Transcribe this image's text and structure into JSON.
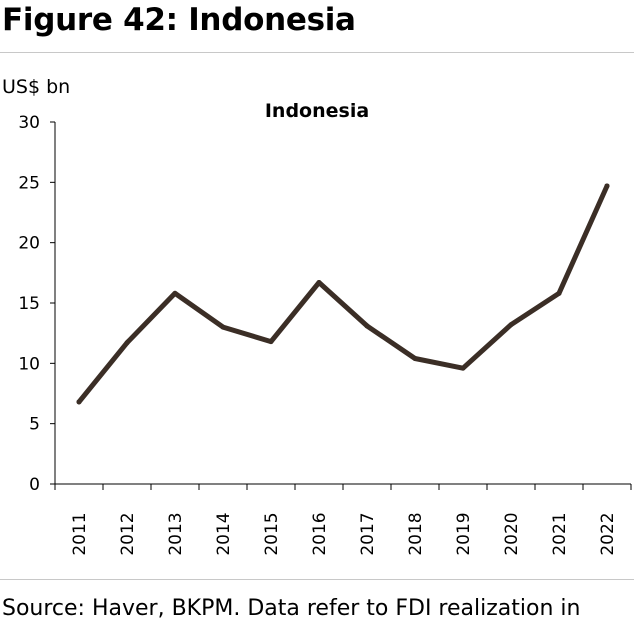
{
  "figure_title": "Figure 42: Indonesia",
  "unit_label": "US$ bn",
  "source_note": "Source: Haver, BKPM. Data refer to FDI realization in",
  "line_color": "#3b2e26",
  "chart_data": {
    "type": "line",
    "title": "Indonesia",
    "ylabel": "US$ bn",
    "xlabel": "",
    "ylim": [
      0,
      30
    ],
    "yticks": [
      0,
      5,
      10,
      15,
      20,
      25,
      30
    ],
    "grid": false,
    "legend": "none",
    "categories": [
      "2011",
      "2012",
      "2013",
      "2014",
      "2015",
      "2016",
      "2017",
      "2018",
      "2019",
      "2020",
      "2021",
      "2022"
    ],
    "series": [
      {
        "values": [
          6.8,
          11.7,
          15.8,
          13.0,
          11.8,
          16.7,
          13.1,
          10.4,
          9.6,
          13.2,
          15.8,
          24.7
        ]
      }
    ]
  }
}
